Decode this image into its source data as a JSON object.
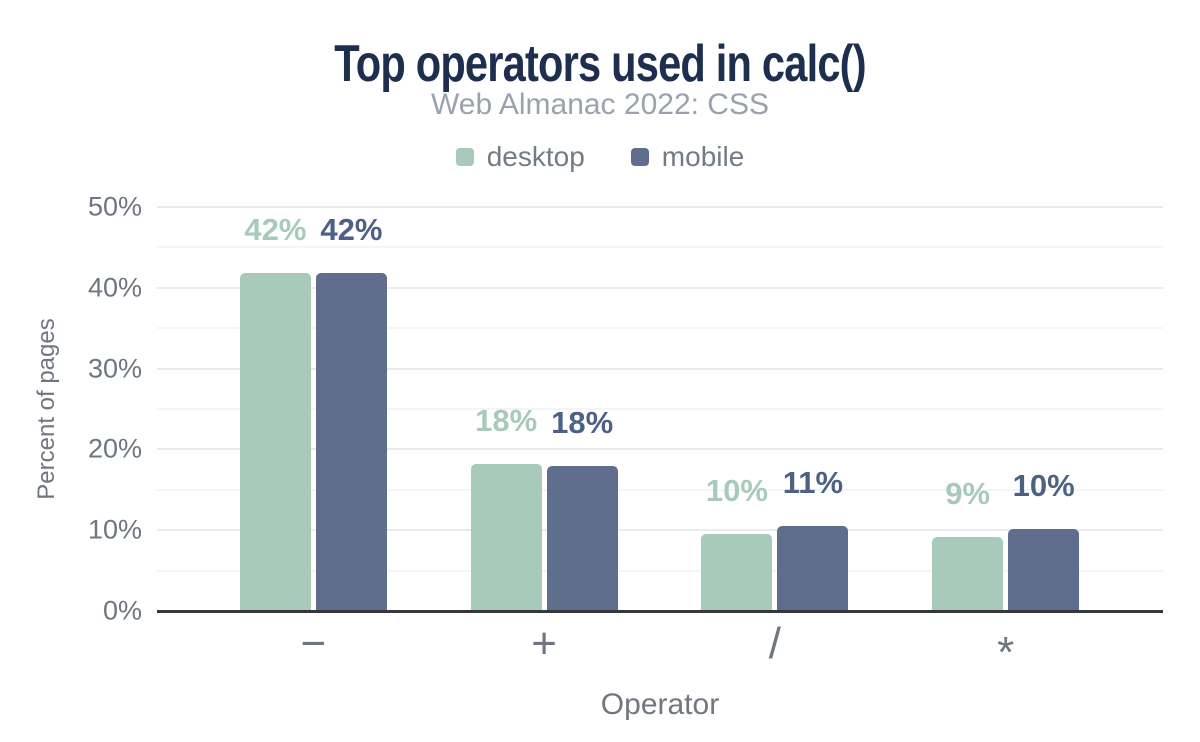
{
  "chart_data": {
    "type": "bar",
    "title": "Top operators used in calc()",
    "subtitle": "Web Almanac 2022: CSS",
    "xlabel": "Operator",
    "ylabel": "Percent of pages",
    "ylim": [
      0,
      50
    ],
    "grid": {
      "step_pct": 5,
      "major_step_pct": 10,
      "orientation": "horizontal"
    },
    "legend_position": "top",
    "yticks": [
      {
        "value": 0,
        "label": "0%"
      },
      {
        "value": 10,
        "label": "10%"
      },
      {
        "value": 20,
        "label": "20%"
      },
      {
        "value": 30,
        "label": "30%"
      },
      {
        "value": 40,
        "label": "40%"
      },
      {
        "value": 50,
        "label": "50%"
      }
    ],
    "categories": [
      {
        "symbol": "−",
        "name": "minus"
      },
      {
        "symbol": "+",
        "name": "plus"
      },
      {
        "symbol": "/",
        "name": "divide"
      },
      {
        "symbol": "*",
        "name": "multiply"
      }
    ],
    "series": [
      {
        "name": "desktop",
        "color": "#a8cabb",
        "label_color": "#a8cabb",
        "values": [
          41.8,
          18.2,
          9.5,
          9.1
        ],
        "labels": [
          "42%",
          "18%",
          "10%",
          "9%"
        ]
      },
      {
        "name": "mobile",
        "color": "#5f6e8c",
        "label_color": "#4d6185",
        "values": [
          41.8,
          17.9,
          10.5,
          10.2
        ],
        "labels": [
          "42%",
          "18%",
          "11%",
          "10%"
        ]
      }
    ],
    "colors": {
      "title": "#1e2e4e",
      "subtitle": "#9aa2ad",
      "axis_text": "#6f767f",
      "axis_line": "#35373b",
      "gridline_major": "#e9ebee",
      "gridline_minor": "#f4f5f7"
    }
  }
}
